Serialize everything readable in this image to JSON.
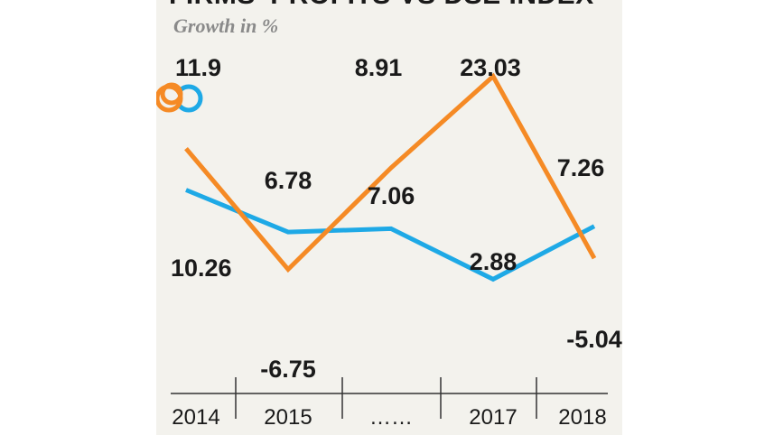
{
  "chart_data": {
    "type": "line",
    "title": "FIRMS' PROFITS VS DSE INDEX",
    "subtitle": "Growth in %",
    "categories": [
      "2014",
      "2015",
      "……",
      "2017",
      "2018"
    ],
    "series": [
      {
        "name": "Firms' profits",
        "color": "#f58a25",
        "values": [
          11.9,
          -6.75,
          8.91,
          23.03,
          -5.04
        ]
      },
      {
        "name": "DSE index",
        "color": "#1ea9e6",
        "values": [
          10.26,
          6.78,
          7.06,
          2.88,
          7.26
        ]
      }
    ],
    "legend_markers": [
      {
        "series": "Firms' profits",
        "color": "#f58a25",
        "icon": "ring-marker-icon"
      },
      {
        "series": "DSE index",
        "color": "#1ea9e6",
        "icon": "ring-marker-icon"
      }
    ],
    "xlabel": "",
    "ylabel": "",
    "grid": false
  }
}
